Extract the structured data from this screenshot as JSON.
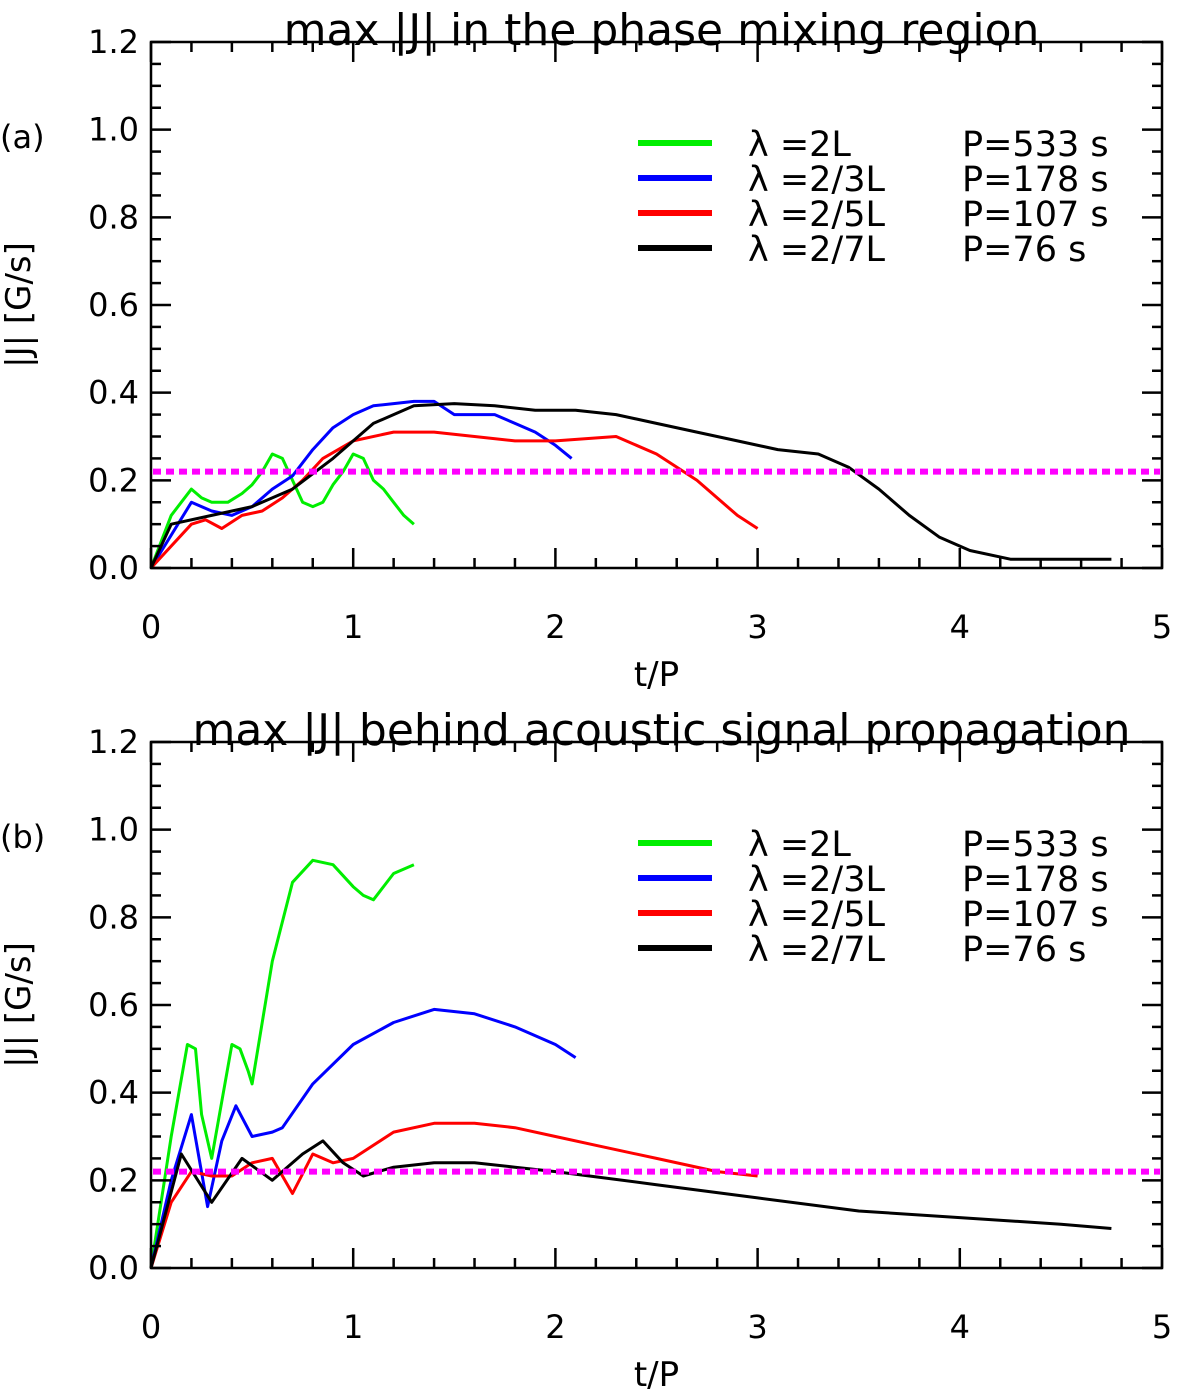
{
  "chart_data": [
    {
      "type": "line",
      "panel_label": "(a)",
      "title": "max |J| in the phase mixing region",
      "xlabel": "t/P",
      "ylabel": "|J| [G/s]",
      "xlim": [
        0,
        5
      ],
      "ylim": [
        0,
        1.2
      ],
      "xticks": [
        "0",
        "1",
        "2",
        "3",
        "4",
        "5"
      ],
      "yticks": [
        "0.0",
        "0.2",
        "0.4",
        "0.6",
        "0.8",
        "1.0",
        "1.2"
      ],
      "threshold": {
        "y": 0.22,
        "color": "#ff00ff",
        "style": "dotted"
      },
      "legend_position": "top-right",
      "series": [
        {
          "name": "λ =2L",
          "period_label": "P=533 s",
          "color": "#00ee00",
          "x": [
            0,
            0.1,
            0.2,
            0.25,
            0.3,
            0.38,
            0.45,
            0.5,
            0.55,
            0.6,
            0.65,
            0.7,
            0.75,
            0.8,
            0.85,
            0.9,
            0.95,
            1.0,
            1.05,
            1.1,
            1.15,
            1.2,
            1.25,
            1.3
          ],
          "y": [
            0,
            0.12,
            0.18,
            0.16,
            0.15,
            0.15,
            0.17,
            0.19,
            0.22,
            0.26,
            0.25,
            0.2,
            0.15,
            0.14,
            0.15,
            0.19,
            0.22,
            0.26,
            0.25,
            0.2,
            0.18,
            0.15,
            0.12,
            0.1
          ]
        },
        {
          "name": "λ =2/3L",
          "period_label": "P=178 s",
          "color": "#0000ff",
          "x": [
            0,
            0.2,
            0.3,
            0.4,
            0.5,
            0.6,
            0.7,
            0.8,
            0.9,
            1.0,
            1.1,
            1.2,
            1.3,
            1.4,
            1.5,
            1.6,
            1.7,
            1.8,
            1.9,
            2.0,
            2.08
          ],
          "y": [
            0,
            0.15,
            0.13,
            0.12,
            0.14,
            0.18,
            0.21,
            0.27,
            0.32,
            0.35,
            0.37,
            0.375,
            0.38,
            0.38,
            0.35,
            0.35,
            0.35,
            0.33,
            0.31,
            0.28,
            0.25
          ]
        },
        {
          "name": "λ =2/5L",
          "period_label": "P=107 s",
          "color": "#ff0000",
          "x": [
            0,
            0.2,
            0.27,
            0.35,
            0.45,
            0.55,
            0.65,
            0.75,
            0.85,
            1.0,
            1.2,
            1.4,
            1.6,
            1.8,
            2.0,
            2.3,
            2.5,
            2.7,
            2.9,
            3.0
          ],
          "y": [
            0,
            0.1,
            0.11,
            0.09,
            0.12,
            0.13,
            0.16,
            0.2,
            0.25,
            0.29,
            0.31,
            0.31,
            0.3,
            0.29,
            0.29,
            0.3,
            0.26,
            0.2,
            0.12,
            0.09
          ]
        },
        {
          "name": "λ =2/7L",
          "period_label": "P=76 s",
          "color": "#000000",
          "x": [
            0,
            0.1,
            0.3,
            0.5,
            0.7,
            0.9,
            1.1,
            1.3,
            1.5,
            1.7,
            1.9,
            2.1,
            2.3,
            2.5,
            2.7,
            2.9,
            3.1,
            3.3,
            3.45,
            3.6,
            3.75,
            3.9,
            4.05,
            4.25,
            4.5,
            4.75
          ],
          "y": [
            0,
            0.1,
            0.12,
            0.14,
            0.18,
            0.25,
            0.33,
            0.37,
            0.375,
            0.37,
            0.36,
            0.36,
            0.35,
            0.33,
            0.31,
            0.29,
            0.27,
            0.26,
            0.23,
            0.18,
            0.12,
            0.07,
            0.04,
            0.02,
            0.02,
            0.02
          ]
        }
      ]
    },
    {
      "type": "line",
      "panel_label": "(b)",
      "title": "max |J| behind acoustic signal propagation",
      "xlabel": "t/P",
      "ylabel": "|J| [G/s]",
      "xlim": [
        0,
        5
      ],
      "ylim": [
        0,
        1.2
      ],
      "xticks": [
        "0",
        "1",
        "2",
        "3",
        "4",
        "5"
      ],
      "yticks": [
        "0.0",
        "0.2",
        "0.4",
        "0.6",
        "0.8",
        "1.0",
        "1.2"
      ],
      "threshold": {
        "y": 0.22,
        "color": "#ff00ff",
        "style": "dotted"
      },
      "legend_position": "top-right",
      "series": [
        {
          "name": "λ =2L",
          "period_label": "P=533 s",
          "color": "#00ee00",
          "x": [
            0,
            0.1,
            0.18,
            0.22,
            0.25,
            0.3,
            0.35,
            0.4,
            0.44,
            0.48,
            0.5,
            0.6,
            0.7,
            0.8,
            0.9,
            1.0,
            1.05,
            1.1,
            1.2,
            1.3
          ],
          "y": [
            0,
            0.3,
            0.51,
            0.5,
            0.35,
            0.25,
            0.38,
            0.51,
            0.5,
            0.45,
            0.42,
            0.7,
            0.88,
            0.93,
            0.92,
            0.87,
            0.85,
            0.84,
            0.9,
            0.92
          ]
        },
        {
          "name": "λ =2/3L",
          "period_label": "P=178 s",
          "color": "#0000ff",
          "x": [
            0,
            0.1,
            0.2,
            0.28,
            0.35,
            0.42,
            0.5,
            0.6,
            0.65,
            0.8,
            1.0,
            1.2,
            1.4,
            1.6,
            1.8,
            2.0,
            2.1
          ],
          "y": [
            0,
            0.2,
            0.35,
            0.14,
            0.29,
            0.37,
            0.3,
            0.31,
            0.32,
            0.42,
            0.51,
            0.56,
            0.59,
            0.58,
            0.55,
            0.51,
            0.48
          ]
        },
        {
          "name": "λ =2/5L",
          "period_label": "P=107 s",
          "color": "#ff0000",
          "x": [
            0,
            0.1,
            0.2,
            0.3,
            0.4,
            0.5,
            0.6,
            0.7,
            0.8,
            0.9,
            1.0,
            1.2,
            1.4,
            1.6,
            1.8,
            2.0,
            2.2,
            2.5,
            2.8,
            3.0
          ],
          "y": [
            0,
            0.15,
            0.22,
            0.21,
            0.21,
            0.24,
            0.25,
            0.17,
            0.26,
            0.24,
            0.25,
            0.31,
            0.33,
            0.33,
            0.32,
            0.3,
            0.28,
            0.25,
            0.22,
            0.21
          ]
        },
        {
          "name": "λ =2/7L",
          "period_label": "P=76 s",
          "color": "#000000",
          "x": [
            0,
            0.15,
            0.3,
            0.45,
            0.6,
            0.75,
            0.85,
            0.95,
            1.05,
            1.2,
            1.4,
            1.6,
            1.8,
            2.0,
            2.5,
            3.0,
            3.5,
            4.0,
            4.5,
            4.75
          ],
          "y": [
            0,
            0.26,
            0.15,
            0.25,
            0.2,
            0.26,
            0.29,
            0.24,
            0.21,
            0.23,
            0.24,
            0.24,
            0.23,
            0.22,
            0.19,
            0.16,
            0.13,
            0.115,
            0.1,
            0.09
          ]
        }
      ]
    }
  ]
}
